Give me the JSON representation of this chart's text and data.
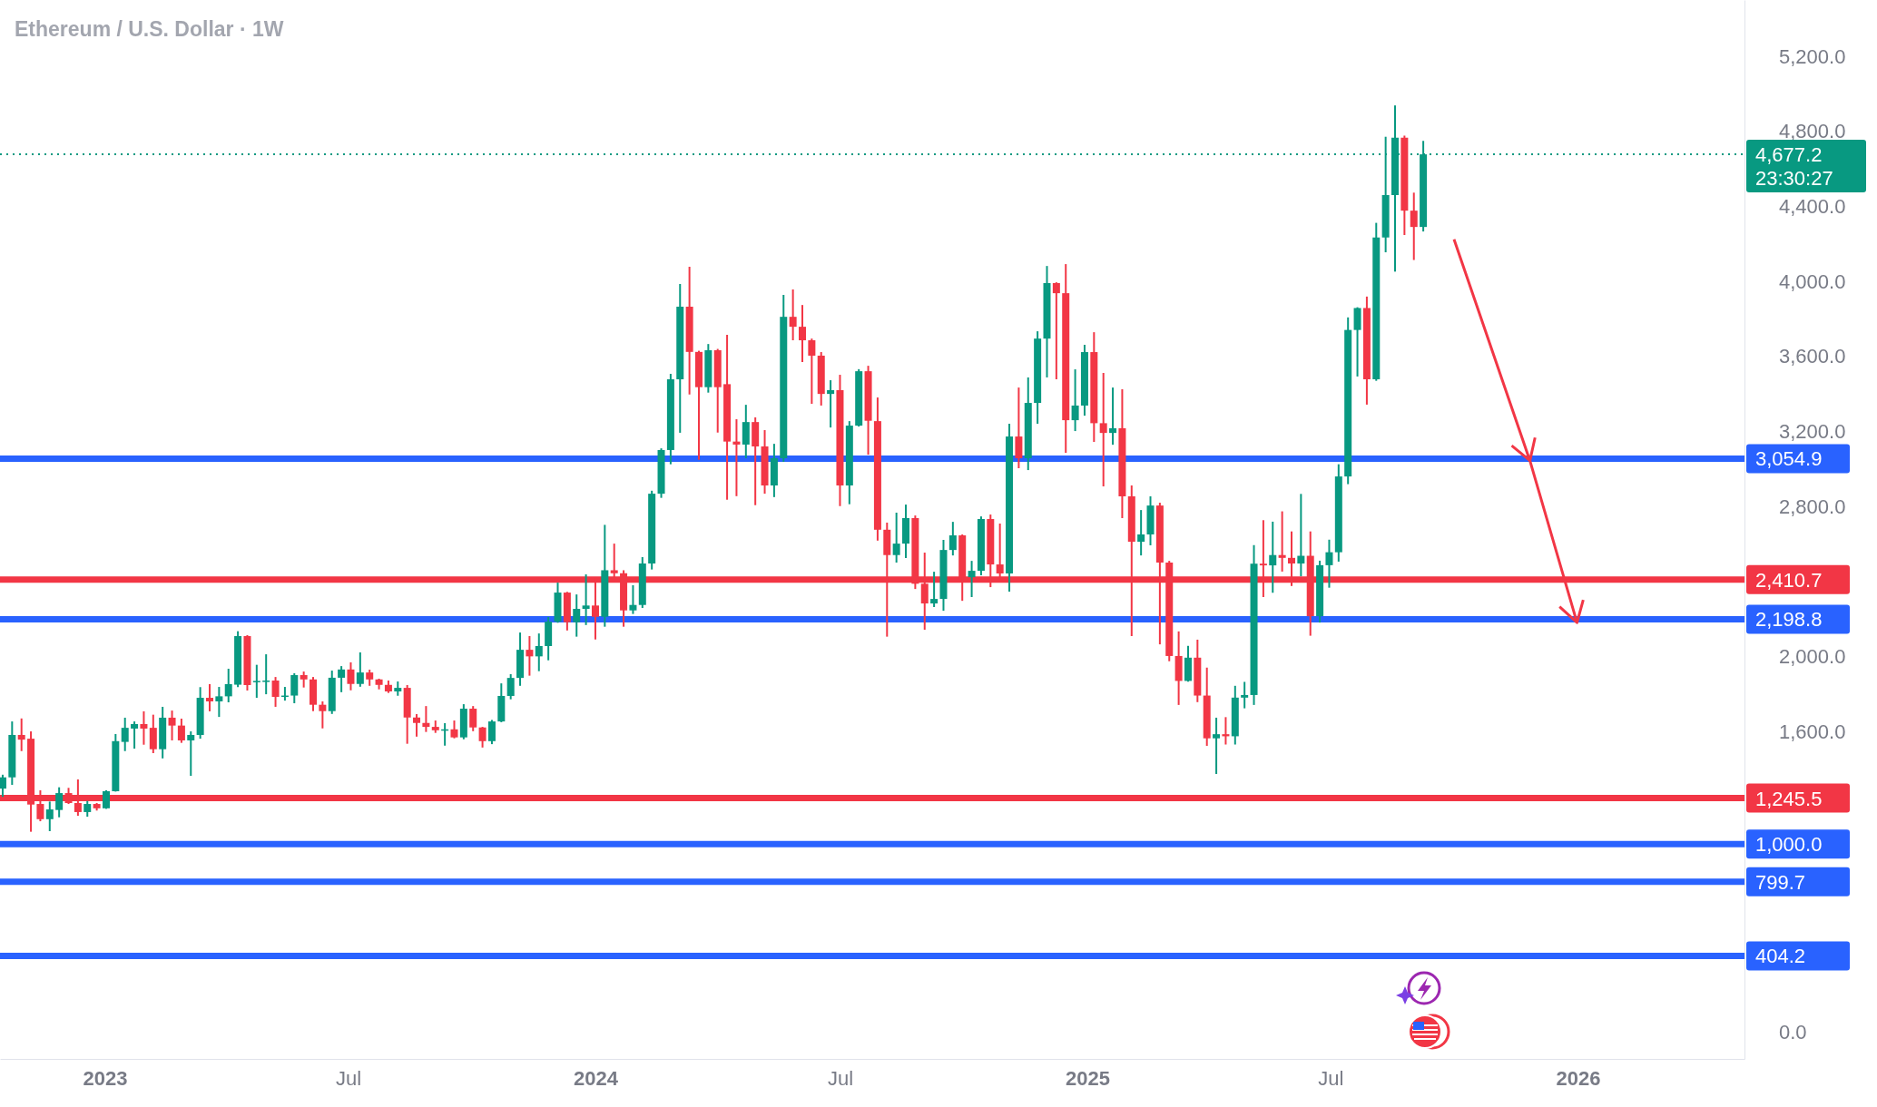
{
  "chart_data": {
    "type": "candlestick",
    "title": "Ethereum / U.S. Dollar · 1W",
    "x": [
      "2022-10-17",
      "2022-10-24",
      "2022-10-31",
      "2022-11-07",
      "2022-11-14",
      "2022-11-21",
      "2022-11-28",
      "2022-12-05",
      "2022-12-12",
      "2022-12-19",
      "2022-12-26",
      "2023-01-02",
      "2023-01-09",
      "2023-01-16",
      "2023-01-23",
      "2023-01-30",
      "2023-02-06",
      "2023-02-13",
      "2023-02-20",
      "2023-02-27",
      "2023-03-06",
      "2023-03-13",
      "2023-03-20",
      "2023-03-27",
      "2023-04-03",
      "2023-04-10",
      "2023-04-17",
      "2023-04-24",
      "2023-05-01",
      "2023-05-08",
      "2023-05-15",
      "2023-05-22",
      "2023-05-29",
      "2023-06-05",
      "2023-06-12",
      "2023-06-19",
      "2023-06-26",
      "2023-07-03",
      "2023-07-10",
      "2023-07-17",
      "2023-07-24",
      "2023-07-31",
      "2023-08-07",
      "2023-08-14",
      "2023-08-21",
      "2023-08-28",
      "2023-09-04",
      "2023-09-11",
      "2023-09-18",
      "2023-09-25",
      "2023-10-02",
      "2023-10-09",
      "2023-10-16",
      "2023-10-23",
      "2023-10-30",
      "2023-11-06",
      "2023-11-13",
      "2023-11-20",
      "2023-11-27",
      "2023-12-04",
      "2023-12-11",
      "2023-12-18",
      "2023-12-25",
      "2024-01-01",
      "2024-01-08",
      "2024-01-15",
      "2024-01-22",
      "2024-01-29",
      "2024-02-05",
      "2024-02-12",
      "2024-02-19",
      "2024-02-26",
      "2024-03-04",
      "2024-03-11",
      "2024-03-18",
      "2024-03-25",
      "2024-04-01",
      "2024-04-08",
      "2024-04-15",
      "2024-04-22",
      "2024-04-29",
      "2024-05-06",
      "2024-05-13",
      "2024-05-20",
      "2024-05-27",
      "2024-06-03",
      "2024-06-10",
      "2024-06-17",
      "2024-06-24",
      "2024-07-01",
      "2024-07-08",
      "2024-07-15",
      "2024-07-22",
      "2024-07-29",
      "2024-08-05",
      "2024-08-12",
      "2024-08-19",
      "2024-08-26",
      "2024-09-02",
      "2024-09-09",
      "2024-09-16",
      "2024-09-23",
      "2024-09-30",
      "2024-10-07",
      "2024-10-14",
      "2024-10-21",
      "2024-10-28",
      "2024-11-04",
      "2024-11-11",
      "2024-11-18",
      "2024-11-25",
      "2024-12-02",
      "2024-12-09",
      "2024-12-16",
      "2024-12-23",
      "2024-12-30",
      "2025-01-06",
      "2025-01-13",
      "2025-01-20",
      "2025-01-27",
      "2025-02-03",
      "2025-02-10",
      "2025-02-17",
      "2025-02-24",
      "2025-03-03",
      "2025-03-10",
      "2025-03-17",
      "2025-03-24",
      "2025-03-31",
      "2025-04-07",
      "2025-04-14",
      "2025-04-21",
      "2025-04-28",
      "2025-05-05",
      "2025-05-12",
      "2025-05-19",
      "2025-05-26",
      "2025-06-02",
      "2025-06-09",
      "2025-06-16",
      "2025-06-23",
      "2025-06-30",
      "2025-07-07",
      "2025-07-14",
      "2025-07-21",
      "2025-07-28",
      "2025-08-04",
      "2025-08-11",
      "2025-08-18",
      "2025-08-25",
      "2025-09-01",
      "2025-09-08"
    ],
    "ohlc": [
      [
        1296,
        1370,
        1252,
        1356
      ],
      [
        1356,
        1654,
        1316,
        1582
      ],
      [
        1582,
        1670,
        1496,
        1557
      ],
      [
        1562,
        1601,
        1066,
        1211
      ],
      [
        1214,
        1287,
        1122,
        1133
      ],
      [
        1133,
        1227,
        1069,
        1185
      ],
      [
        1182,
        1303,
        1143,
        1272
      ],
      [
        1272,
        1300,
        1214,
        1219
      ],
      [
        1219,
        1345,
        1151,
        1171
      ],
      [
        1171,
        1230,
        1146,
        1214
      ],
      [
        1214,
        1219,
        1179,
        1191
      ],
      [
        1191,
        1287,
        1188,
        1282
      ],
      [
        1282,
        1587,
        1280,
        1549
      ],
      [
        1545,
        1674,
        1496,
        1620
      ],
      [
        1616,
        1654,
        1509,
        1640
      ],
      [
        1640,
        1708,
        1530,
        1616
      ],
      [
        1620,
        1690,
        1485,
        1506
      ],
      [
        1506,
        1732,
        1457,
        1674
      ],
      [
        1674,
        1712,
        1553,
        1632
      ],
      [
        1632,
        1669,
        1540,
        1553
      ],
      [
        1553,
        1601,
        1364,
        1582
      ],
      [
        1582,
        1837,
        1562,
        1780
      ],
      [
        1780,
        1853,
        1708,
        1761
      ],
      [
        1761,
        1838,
        1678,
        1788
      ],
      [
        1788,
        1935,
        1756,
        1853
      ],
      [
        1850,
        2135,
        1837,
        2109
      ],
      [
        2109,
        2114,
        1819,
        1848
      ],
      [
        1867,
        1956,
        1780,
        1870
      ],
      [
        1870,
        2012,
        1799,
        1872
      ],
      [
        1872,
        1891,
        1732,
        1785
      ],
      [
        1785,
        1838,
        1765,
        1792
      ],
      [
        1792,
        1911,
        1751,
        1901
      ],
      [
        1901,
        1920,
        1835,
        1878
      ],
      [
        1878,
        1891,
        1709,
        1743
      ],
      [
        1743,
        1761,
        1617,
        1709
      ],
      [
        1709,
        1925,
        1694,
        1887
      ],
      [
        1887,
        1949,
        1810,
        1931
      ],
      [
        1931,
        1969,
        1820,
        1854
      ],
      [
        1854,
        2022,
        1839,
        1915
      ],
      [
        1915,
        1930,
        1844,
        1878
      ],
      [
        1878,
        1882,
        1825,
        1849
      ],
      [
        1849,
        1872,
        1806,
        1814
      ],
      [
        1814,
        1867,
        1791,
        1833
      ],
      [
        1833,
        1848,
        1535,
        1675
      ],
      [
        1675,
        1693,
        1573,
        1646
      ],
      [
        1646,
        1736,
        1598,
        1625
      ],
      [
        1625,
        1659,
        1593,
        1607
      ],
      [
        1605,
        1645,
        1525,
        1612
      ],
      [
        1612,
        1659,
        1564,
        1569
      ],
      [
        1569,
        1746,
        1559,
        1722
      ],
      [
        1722,
        1736,
        1602,
        1622
      ],
      [
        1622,
        1625,
        1515,
        1549
      ],
      [
        1549,
        1662,
        1533,
        1654
      ],
      [
        1654,
        1857,
        1650,
        1790
      ],
      [
        1790,
        1906,
        1772,
        1886
      ],
      [
        1886,
        2128,
        1844,
        2036
      ],
      [
        2036,
        2109,
        1898,
        2001
      ],
      [
        2001,
        2123,
        1922,
        2056
      ],
      [
        2056,
        2211,
        1980,
        2186
      ],
      [
        2186,
        2394,
        2180,
        2341
      ],
      [
        2341,
        2345,
        2139,
        2183
      ],
      [
        2183,
        2331,
        2106,
        2254
      ],
      [
        2254,
        2438,
        2168,
        2272
      ],
      [
        2272,
        2423,
        2091,
        2212
      ],
      [
        2212,
        2702,
        2159,
        2460
      ],
      [
        2460,
        2602,
        2420,
        2444
      ],
      [
        2444,
        2460,
        2159,
        2246
      ],
      [
        2246,
        2380,
        2227,
        2275
      ],
      [
        2275,
        2530,
        2259,
        2496
      ],
      [
        2496,
        2884,
        2464,
        2868
      ],
      [
        2868,
        3110,
        2846,
        3101
      ],
      [
        3101,
        3507,
        3025,
        3478
      ],
      [
        3478,
        3986,
        3193,
        3865
      ],
      [
        3865,
        4078,
        3397,
        3624
      ],
      [
        3624,
        3630,
        3049,
        3436
      ],
      [
        3436,
        3666,
        3407,
        3633
      ],
      [
        3633,
        3640,
        3194,
        3436
      ],
      [
        3452,
        3715,
        2836,
        3146
      ],
      [
        3146,
        3265,
        2855,
        3130
      ],
      [
        3130,
        3342,
        3057,
        3250
      ],
      [
        3250,
        3275,
        2807,
        3120
      ],
      [
        3120,
        3207,
        2868,
        2912
      ],
      [
        2912,
        3134,
        2850,
        3057
      ],
      [
        3057,
        3928,
        3038,
        3811
      ],
      [
        3811,
        3957,
        3686,
        3758
      ],
      [
        3758,
        3874,
        3570,
        3686
      ],
      [
        3686,
        3695,
        3347,
        3604
      ],
      [
        3604,
        3623,
        3338,
        3400
      ],
      [
        3400,
        3473,
        3221,
        3420
      ],
      [
        3420,
        3502,
        2802,
        2912
      ],
      [
        2912,
        3255,
        2812,
        3231
      ],
      [
        3231,
        3532,
        3226,
        3521
      ],
      [
        3521,
        3550,
        3076,
        3257
      ],
      [
        3255,
        3381,
        2618,
        2676
      ],
      [
        2676,
        2714,
        2106,
        2541
      ],
      [
        2541,
        2767,
        2501,
        2602
      ],
      [
        2602,
        2810,
        2525,
        2738
      ],
      [
        2738,
        2752,
        2360,
        2388
      ],
      [
        2388,
        2554,
        2143,
        2283
      ],
      [
        2283,
        2452,
        2264,
        2307
      ],
      [
        2307,
        2622,
        2244,
        2568
      ],
      [
        2568,
        2718,
        2539,
        2646
      ],
      [
        2646,
        2651,
        2297,
        2423
      ],
      [
        2423,
        2510,
        2317,
        2457
      ],
      [
        2457,
        2747,
        2433,
        2733
      ],
      [
        2733,
        2757,
        2370,
        2491
      ],
      [
        2491,
        2709,
        2414,
        2443
      ],
      [
        2443,
        3241,
        2346,
        3173
      ],
      [
        3173,
        3434,
        3004,
        3057
      ],
      [
        3057,
        3488,
        2994,
        3352
      ],
      [
        3352,
        3734,
        3241,
        3695
      ],
      [
        3695,
        4082,
        3488,
        3991
      ],
      [
        3991,
        3995,
        3478,
        3937
      ],
      [
        3937,
        4092,
        3086,
        3260
      ],
      [
        3260,
        3531,
        3202,
        3338
      ],
      [
        3338,
        3662,
        3284,
        3623
      ],
      [
        3623,
        3729,
        3144,
        3244
      ],
      [
        3244,
        3512,
        2907,
        3192
      ],
      [
        3192,
        3434,
        3129,
        3217
      ],
      [
        3217,
        3425,
        2738,
        2854
      ],
      [
        2854,
        2912,
        2109,
        2612
      ],
      [
        2612,
        2781,
        2539,
        2651
      ],
      [
        2651,
        2854,
        2593,
        2805
      ],
      [
        2805,
        2820,
        2065,
        2501
      ],
      [
        2501,
        2510,
        1975,
        2003
      ],
      [
        2003,
        2134,
        1742,
        1870
      ],
      [
        1870,
        2057,
        1866,
        1994
      ],
      [
        1994,
        2090,
        1757,
        1792
      ],
      [
        1792,
        1941,
        1524,
        1564
      ],
      [
        1564,
        1674,
        1374,
        1586
      ],
      [
        1586,
        1677,
        1531,
        1575
      ],
      [
        1575,
        1844,
        1531,
        1781
      ],
      [
        1781,
        1865,
        1724,
        1795
      ],
      [
        1795,
        2594,
        1742,
        2495
      ],
      [
        2495,
        2727,
        2317,
        2486
      ],
      [
        2486,
        2719,
        2340,
        2541
      ],
      [
        2541,
        2774,
        2453,
        2526
      ],
      [
        2526,
        2667,
        2376,
        2496
      ],
      [
        2496,
        2867,
        2428,
        2537
      ],
      [
        2537,
        2667,
        2111,
        2215
      ],
      [
        2215,
        2511,
        2181,
        2487
      ],
      [
        2487,
        2623,
        2367,
        2556
      ],
      [
        2556,
        3025,
        2506,
        2960
      ],
      [
        2960,
        3808,
        2919,
        3741
      ],
      [
        3741,
        3862,
        3493,
        3858
      ],
      [
        3858,
        3919,
        3343,
        3478
      ],
      [
        3478,
        4312,
        3470,
        4234
      ],
      [
        4234,
        4771,
        4155,
        4460
      ],
      [
        4460,
        4938,
        4052,
        4766
      ],
      [
        4766,
        4777,
        4247,
        4377
      ],
      [
        4377,
        4473,
        4114,
        4290
      ],
      [
        4290,
        4749,
        4266,
        4677.2
      ]
    ],
    "colors": [
      "#089981",
      "#089981",
      "#f23645",
      "#f23645",
      "#f23645",
      "#089981",
      "#089981",
      "#f23645",
      "#f23645",
      "#089981",
      "#f23645",
      "#089981",
      "#089981",
      "#089981",
      "#089981",
      "#f23645",
      "#f23645",
      "#089981",
      "#f23645",
      "#f23645",
      "#089981",
      "#089981",
      "#f23645",
      "#089981",
      "#089981",
      "#089981",
      "#f23645",
      "#089981",
      "#089981",
      "#f23645",
      "#089981",
      "#089981",
      "#f23645",
      "#f23645",
      "#f23645",
      "#089981",
      "#089981",
      "#f23645",
      "#089981",
      "#f23645",
      "#f23645",
      "#f23645",
      "#089981",
      "#f23645",
      "#f23645",
      "#f23645",
      "#f23645",
      "#089981",
      "#f23645",
      "#089981",
      "#f23645",
      "#f23645",
      "#089981",
      "#089981",
      "#089981",
      "#089981",
      "#f23645",
      "#089981",
      "#089981",
      "#089981",
      "#f23645",
      "#089981",
      "#089981",
      "#f23645",
      "#089981",
      "#f23645",
      "#f23645",
      "#089981",
      "#089981",
      "#089981",
      "#089981",
      "#089981",
      "#089981",
      "#f23645",
      "#f23645",
      "#089981",
      "#f23645",
      "#f23645",
      "#f23645",
      "#089981",
      "#f23645",
      "#f23645",
      "#089981",
      "#089981",
      "#f23645",
      "#f23645",
      "#f23645",
      "#f23645",
      "#089981",
      "#f23645",
      "#089981",
      "#089981",
      "#f23645",
      "#f23645",
      "#f23645",
      "#089981",
      "#089981",
      "#f23645",
      "#f23645",
      "#089981",
      "#089981",
      "#089981",
      "#f23645",
      "#089981",
      "#089981",
      "#f23645",
      "#f23645",
      "#089981",
      "#f23645",
      "#089981",
      "#089981",
      "#089981",
      "#f23645",
      "#f23645",
      "#089981",
      "#089981",
      "#f23645",
      "#f23645",
      "#089981",
      "#f23645",
      "#f23645",
      "#089981",
      "#089981",
      "#f23645",
      "#f23645",
      "#f23645",
      "#089981",
      "#f23645",
      "#f23645",
      "#089981",
      "#f23645",
      "#089981",
      "#089981",
      "#089981",
      "#f23645",
      "#089981",
      "#f23645",
      "#f23645",
      "#089981",
      "#f23645",
      "#089981",
      "#089981",
      "#089981",
      "#089981",
      "#089981",
      "#f23645",
      "#089981",
      "#089981",
      "#089981",
      "#f23645",
      "#f23645",
      "#089981"
    ],
    "xlim": [
      "2022-10-15",
      "2026-05-05"
    ],
    "xticks": [
      {
        "value": "2023-01-01",
        "label": "2023"
      },
      {
        "value": "2023-07-01",
        "label": "Jul"
      },
      {
        "value": "2024-01-01",
        "label": "2024"
      },
      {
        "value": "2024-07-01",
        "label": "Jul"
      },
      {
        "value": "2025-01-01",
        "label": "2025"
      },
      {
        "value": "2025-07-01",
        "label": "Jul"
      },
      {
        "value": "2026-01-01",
        "label": "2026"
      }
    ],
    "ylim": [
      -145,
      5500
    ],
    "yticks": [
      {
        "value": 0,
        "label": "0.0"
      },
      {
        "value": 1600,
        "label": "1,600.0"
      },
      {
        "value": 2000,
        "label": "2,000.0"
      },
      {
        "value": 2800,
        "label": "2,800.0"
      },
      {
        "value": 3200,
        "label": "3,200.0"
      },
      {
        "value": 3600,
        "label": "3,600.0"
      },
      {
        "value": 4000,
        "label": "4,000.0"
      },
      {
        "value": 4400,
        "label": "4,400.0"
      },
      {
        "value": 4800,
        "label": "4,800.0"
      },
      {
        "value": 5200,
        "label": "5,200.0"
      }
    ],
    "ref_lines": [
      {
        "axis": "y",
        "value": 4677.2,
        "label": "4,677.2",
        "color": "#089981",
        "line_style": "dotted"
      },
      {
        "axis": "y",
        "value": 3054.9,
        "label": "3,054.9",
        "color": "#2962ff"
      },
      {
        "axis": "y",
        "value": 2410.7,
        "label": "2,410.7",
        "color": "#f23645"
      },
      {
        "axis": "y",
        "value": 2198.8,
        "label": "2,198.8",
        "color": "#2962ff"
      },
      {
        "axis": "y",
        "value": 1245.5,
        "label": "1,245.5",
        "color": "#f23645"
      },
      {
        "axis": "y",
        "value": 1000.0,
        "label": "1,000.0",
        "color": "#2962ff"
      },
      {
        "axis": "y",
        "value": 799.7,
        "label": "799.7",
        "color": "#2962ff"
      },
      {
        "axis": "y",
        "value": 404.2,
        "label": "404.2",
        "color": "#2962ff"
      }
    ],
    "annotations": [
      "23:30:27"
    ]
  }
}
